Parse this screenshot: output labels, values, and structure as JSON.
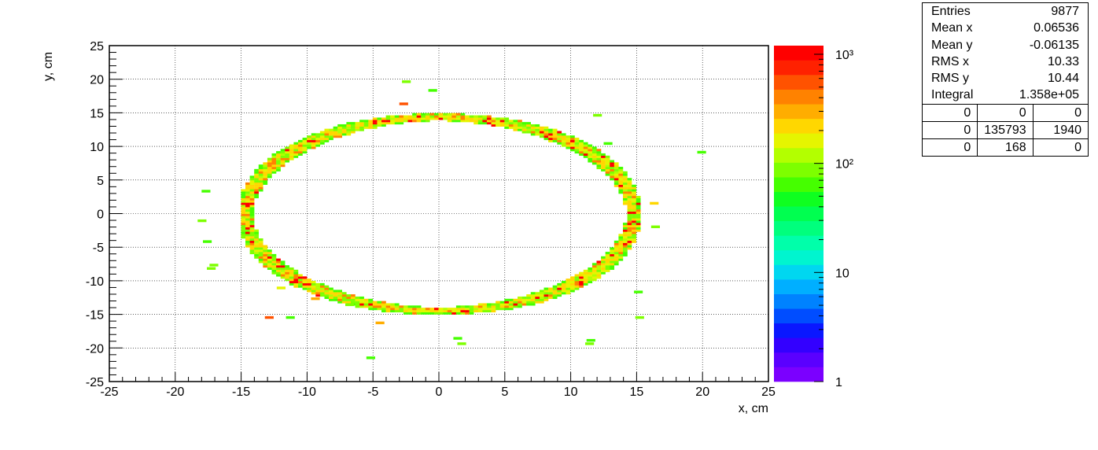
{
  "chart_data": {
    "type": "heatmap",
    "title": "",
    "xlabel": "x, cm",
    "ylabel": "y, cm",
    "xlim": [
      -25,
      25
    ],
    "ylim": [
      -25,
      25
    ],
    "grid": true,
    "x_ticks": [
      "-25",
      "-20",
      "-15",
      "-10",
      "-5",
      "0",
      "5",
      "10",
      "15",
      "20",
      "25"
    ],
    "y_ticks": [
      "25",
      "20",
      "15",
      "10",
      "5",
      "0",
      "-5",
      "-10",
      "-15",
      "-20",
      "-25"
    ],
    "colorbar": {
      "scale": "log",
      "range": [
        1,
        1200
      ],
      "tick_labels": [
        "1",
        "10",
        "10²",
        "10³"
      ],
      "palette": [
        "#7B00FF",
        "#5A00FF",
        "#3300FF",
        "#0A17FF",
        "#004DFF",
        "#0082FF",
        "#00AFFF",
        "#00D7F0",
        "#00F5CF",
        "#00FFAA",
        "#00FF7D",
        "#00FF50",
        "#0FFF20",
        "#45FF00",
        "#7DFF00",
        "#B3FF00",
        "#E5F500",
        "#FFD700",
        "#FFAD00",
        "#FF8200",
        "#FF5200",
        "#FF2100",
        "#FF0000"
      ]
    },
    "ring": {
      "center": [
        0.06536,
        -0.06135
      ],
      "radius_x": 14.7,
      "radius_y": 14.4,
      "bin_size": 0.333
    },
    "stray_points": [
      {
        "x": -18,
        "y": 3.2,
        "v": 60
      },
      {
        "x": -18.3,
        "y": -1.2,
        "v": 90
      },
      {
        "x": -17.9,
        "y": -4.3,
        "v": 60
      },
      {
        "x": -17.6,
        "y": -8.3,
        "v": 90
      },
      {
        "x": -17.4,
        "y": -7.8,
        "v": 80
      },
      {
        "x": -12.3,
        "y": -11.2,
        "v": 150
      },
      {
        "x": -11.6,
        "y": -15.6,
        "v": 70
      },
      {
        "x": -13.2,
        "y": -15.6,
        "v": 500
      },
      {
        "x": -5.5,
        "y": -21.6,
        "v": 60
      },
      {
        "x": -4.8,
        "y": -16.4,
        "v": 300
      },
      {
        "x": -2.8,
        "y": 19.5,
        "v": 80
      },
      {
        "x": -3.0,
        "y": 16.2,
        "v": 500
      },
      {
        "x": -0.8,
        "y": 18.2,
        "v": 70
      },
      {
        "x": 1.1,
        "y": -18.7,
        "v": 60
      },
      {
        "x": 1.4,
        "y": -19.5,
        "v": 90
      },
      {
        "x": 11.2,
        "y": -19.0,
        "v": 60
      },
      {
        "x": 11.1,
        "y": -19.5,
        "v": 80
      },
      {
        "x": 12.5,
        "y": 10.3,
        "v": 60
      },
      {
        "x": 11.7,
        "y": 14.5,
        "v": 90
      },
      {
        "x": 14.8,
        "y": -11.8,
        "v": 60
      },
      {
        "x": 14.9,
        "y": -15.6,
        "v": 90
      },
      {
        "x": 16.0,
        "y": 1.4,
        "v": 200
      },
      {
        "x": 16.1,
        "y": -2.1,
        "v": 80
      },
      {
        "x": 19.6,
        "y": 9.0,
        "v": 60
      },
      {
        "x": -7.1,
        "y": -13.7,
        "v": 90
      },
      {
        "x": -9.7,
        "y": -12.8,
        "v": 300
      }
    ]
  },
  "stats": {
    "rows": [
      {
        "label": "Entries",
        "value": "9877"
      },
      {
        "label": "Mean x",
        "value": "0.06536"
      },
      {
        "label": "Mean y",
        "value": "-0.06135"
      },
      {
        "label": "RMS x",
        "value": "10.33"
      },
      {
        "label": "RMS y",
        "value": "10.44"
      },
      {
        "label": "Integral",
        "value": "1.358e+05"
      }
    ],
    "grid": [
      [
        "0",
        "0",
        "0"
      ],
      [
        "0",
        "135793",
        "1940"
      ],
      [
        "0",
        "168",
        "0"
      ]
    ]
  }
}
